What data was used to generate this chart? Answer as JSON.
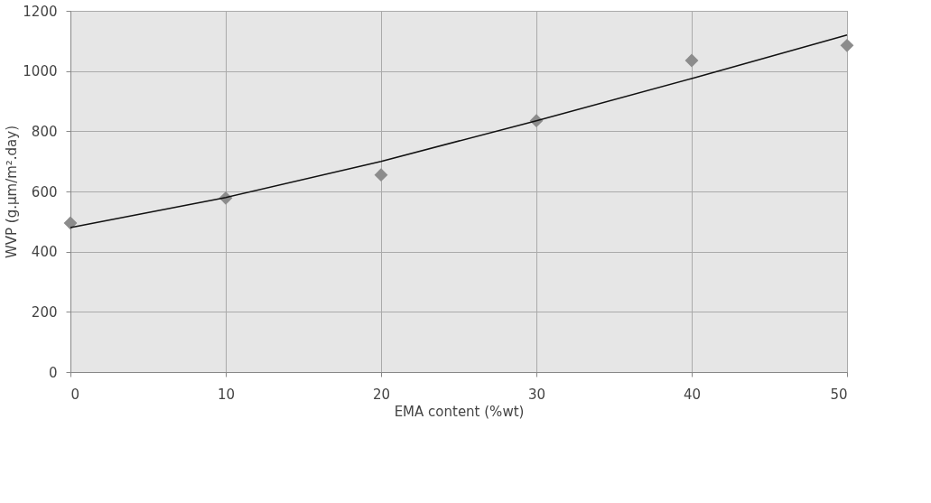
{
  "chart_data": {
    "type": "scatter",
    "xlabel": "EMA content (%wt)",
    "ylabel": "WVP (g.μm/m².day)",
    "x": [
      0,
      10,
      20,
      30,
      40,
      50
    ],
    "series": [
      {
        "color": "#8c8c8c",
        "marker": "diamond",
        "values": [
          495,
          578,
          655,
          835,
          1035,
          1085
        ]
      },
      {
        "type": "line",
        "color": "#111111",
        "marker": "none",
        "line_style": "solid",
        "x": [
          0,
          10,
          20,
          30,
          40,
          50
        ],
        "values": [
          480,
          580,
          700,
          835,
          975,
          1120
        ]
      }
    ],
    "xlim": [
      0,
      50
    ],
    "xticks": [
      0,
      10,
      20,
      30,
      40,
      50
    ],
    "ylim": [
      0,
      1200
    ],
    "yticks": [
      0,
      200,
      400,
      600,
      800,
      1000,
      1200
    ],
    "grid": true
  }
}
